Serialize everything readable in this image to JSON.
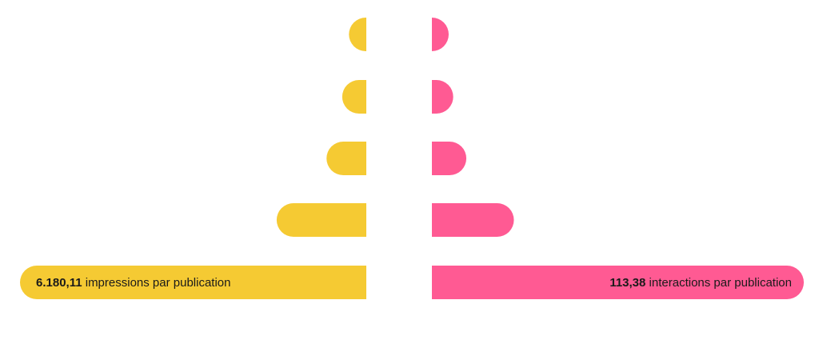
{
  "chart_data": {
    "type": "bar",
    "layout": "butterfly",
    "colors": {
      "left": "#F5CA33",
      "right": "#FF5A93"
    },
    "left": {
      "values": [
        310,
        430,
        710,
        1600,
        6180.11
      ],
      "value_label": "6.180,11",
      "unit_label": "impressions par publication"
    },
    "right": {
      "values": [
        5,
        6.5,
        10.5,
        25,
        113.38
      ],
      "value_label": "113,38",
      "unit_label": "interactions par publication"
    }
  }
}
